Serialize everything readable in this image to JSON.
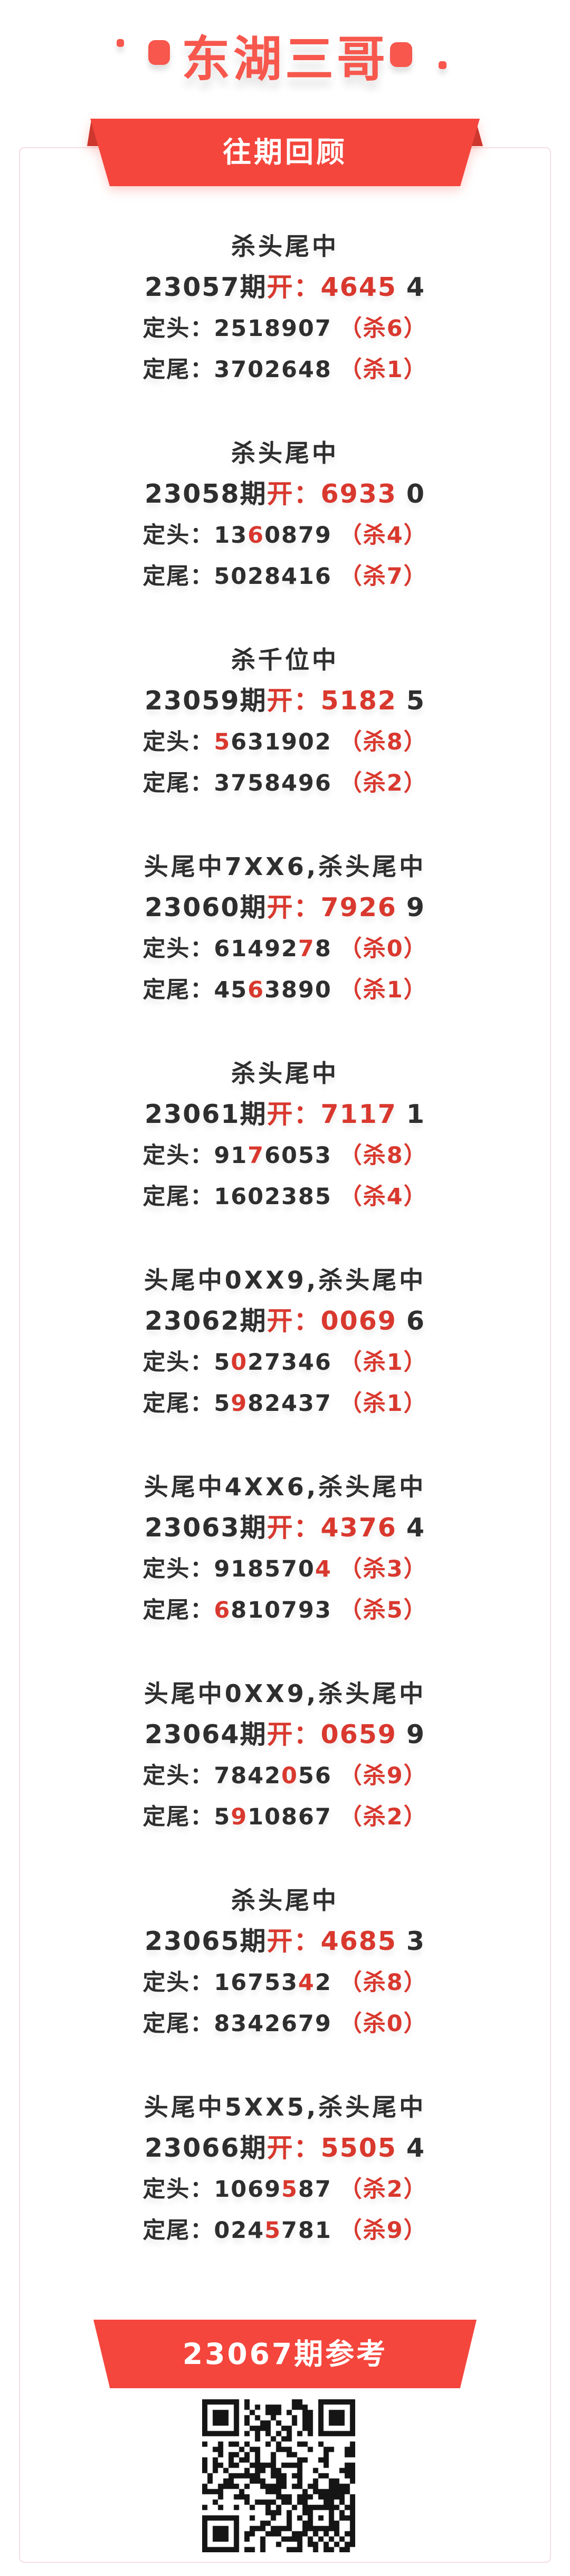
{
  "header": {
    "title": "东湖三哥",
    "decorations": [
      "dot-left",
      "rounded-square-left",
      "rounded-square-right",
      "dot-right"
    ]
  },
  "review_ribbon": {
    "label": "往期回顾"
  },
  "labels": {
    "period_suffix": "期",
    "open_prefix": "开：",
    "head_label": "定头：",
    "tail_label": "定尾："
  },
  "entries": [
    {
      "title": "杀头尾中",
      "period": "23057",
      "open_main": "4645",
      "open_extra": "4",
      "head_digits": "2518907",
      "head_red_index": -1,
      "head_kill": "（杀6）",
      "tail_digits": "3702648",
      "tail_red_index": -1,
      "tail_kill": "（杀1）"
    },
    {
      "title": "杀头尾中",
      "period": "23058",
      "open_main": "6933",
      "open_extra": "0",
      "head_digits": "1360879",
      "head_red_index": 2,
      "head_kill": "（杀4）",
      "tail_digits": "5028416",
      "tail_red_index": -1,
      "tail_kill": "（杀7）"
    },
    {
      "title": "杀千位中",
      "period": "23059",
      "open_main": "5182",
      "open_extra": "5",
      "head_digits": "5631902",
      "head_red_index": 0,
      "head_kill": "（杀8）",
      "tail_digits": "3758496",
      "tail_red_index": -1,
      "tail_kill": "（杀2）"
    },
    {
      "title": "头尾中7XX6,杀头尾中",
      "period": "23060",
      "open_main": "7926",
      "open_extra": "9",
      "head_digits": "6149278",
      "head_red_index": 5,
      "head_kill": "（杀0）",
      "tail_digits": "4563890",
      "tail_red_index": 2,
      "tail_kill": "（杀1）"
    },
    {
      "title": "杀头尾中",
      "period": "23061",
      "open_main": "7117",
      "open_extra": "1",
      "head_digits": "9176053",
      "head_red_index": 2,
      "head_kill": "（杀8）",
      "tail_digits": "1602385",
      "tail_red_index": -1,
      "tail_kill": "（杀4）"
    },
    {
      "title": "头尾中0XX9,杀头尾中",
      "period": "23062",
      "open_main": "0069",
      "open_extra": "6",
      "head_digits": "5027346",
      "head_red_index": 1,
      "head_kill": "（杀1）",
      "tail_digits": "5982437",
      "tail_red_index": 1,
      "tail_kill": "（杀1）"
    },
    {
      "title": "头尾中4XX6,杀头尾中",
      "period": "23063",
      "open_main": "4376",
      "open_extra": "4",
      "head_digits": "9185704",
      "head_red_index": 6,
      "head_kill": "（杀3）",
      "tail_digits": "6810793",
      "tail_red_index": 0,
      "tail_kill": "（杀5）"
    },
    {
      "title": "头尾中0XX9,杀头尾中",
      "period": "23064",
      "open_main": "0659",
      "open_extra": "9",
      "head_digits": "7842056",
      "head_red_index": 4,
      "head_kill": "（杀9）",
      "tail_digits": "5910867",
      "tail_red_index": 1,
      "tail_kill": "（杀2）"
    },
    {
      "title": "杀头尾中",
      "period": "23065",
      "open_main": "4685",
      "open_extra": "3",
      "head_digits": "1675342",
      "head_red_index": 5,
      "head_kill": "（杀8）",
      "tail_digits": "8342679",
      "tail_red_index": -1,
      "tail_kill": "（杀0）"
    },
    {
      "title": "头尾中5XX5,杀头尾中",
      "period": "23066",
      "open_main": "5505",
      "open_extra": "4",
      "head_digits": "1069587",
      "head_red_index": 4,
      "head_kill": "（杀2）",
      "tail_digits": "0245781",
      "tail_red_index": 3,
      "tail_kill": "（杀9）"
    }
  ],
  "footer": {
    "ribbon_label": "23067期参考",
    "qr_icon": "qr-code"
  },
  "colors": {
    "accent_red": "#f4463d",
    "accent_dark_red": "#cd372e",
    "coral_title": "#f7574d",
    "text_red": "#d9382e",
    "text_black": "#2e2e2e",
    "card_border": "#f5dee3",
    "qr_black": "#151515"
  }
}
